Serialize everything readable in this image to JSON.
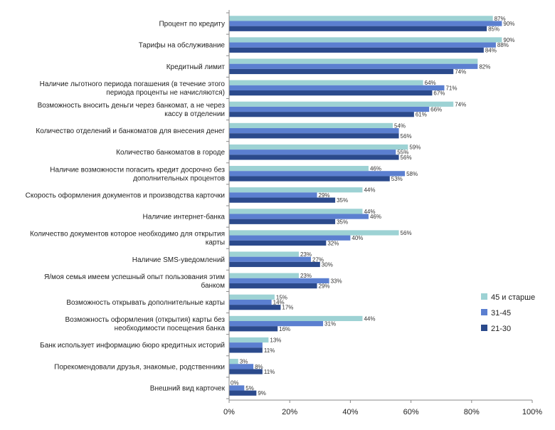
{
  "chart_data": {
    "type": "bar",
    "orientation": "horizontal",
    "categories": [
      [
        "Процент по кредиту"
      ],
      [
        "Тарифы на обслуживание"
      ],
      [
        "Кредитный лимит"
      ],
      [
        "Наличие льготного периода погашения (в течение этого",
        "периода проценты не начисляются)"
      ],
      [
        "Возможность вносить деньги через банкомат, а не через",
        "кассу в отделении"
      ],
      [
        "Количество отделений и банкоматов для внесения денег"
      ],
      [
        "Количество банкоматов в городе"
      ],
      [
        "Наличие возможности погасить кредит досрочно без",
        "дополнительных процентов"
      ],
      [
        "Скорость оформления документов и производства карточки"
      ],
      [
        "Наличие интернет-банка"
      ],
      [
        "Количество документов  которое необходимо для  открытия",
        "карты"
      ],
      [
        "Наличие SMS-уведомлений"
      ],
      [
        "Я/моя семья имеем успешный опыт пользования этим",
        "банком"
      ],
      [
        "Возможность открывать дополнительные карты"
      ],
      [
        "Возможность оформления  (открытия) карты без",
        "необходимости посещения  банка"
      ],
      [
        "Банк использует информацию бюро кредитных историй"
      ],
      [
        "Порекомендовали друзья, знакомые, родственники"
      ],
      [
        "Внешний вид карточек"
      ]
    ],
    "series": [
      {
        "name": "45 и старше",
        "color": "#9dd2d4",
        "values": [
          87,
          90,
          82,
          64,
          74,
          54,
          59,
          46,
          44,
          44,
          56,
          23,
          23,
          15,
          44,
          13,
          3,
          0
        ],
        "labels": [
          "87%",
          "90%",
          "",
          "64%",
          "74%",
          "54%",
          "59%",
          "46%",
          "44%",
          "44%",
          "56%",
          "23%",
          "23%",
          "15%",
          "44%",
          "13%",
          "3%",
          "0%"
        ]
      },
      {
        "name": "31-45",
        "color": "#5b7fd0",
        "values": [
          90,
          88,
          82,
          71,
          66,
          56,
          55,
          58,
          29,
          46,
          40,
          27,
          33,
          14,
          31,
          11,
          8,
          5
        ],
        "labels": [
          "90%",
          "88%",
          "82%",
          "71%",
          "66%",
          "",
          "55%",
          "58%",
          "29%",
          "46%",
          "40%",
          "27%",
          "33%",
          "14%",
          "31%",
          "",
          "8%",
          "5%"
        ]
      },
      {
        "name": "21-30",
        "color": "#2b4a8c",
        "values": [
          85,
          84,
          74,
          67,
          61,
          56,
          56,
          53,
          35,
          35,
          32,
          30,
          29,
          17,
          16,
          11,
          11,
          9
        ],
        "labels": [
          "85%",
          "84%",
          "74%",
          "67%",
          "61%",
          "56%",
          "56%",
          "53%",
          "35%",
          "35%",
          "32%",
          "30%",
          "29%",
          "17%",
          "16%",
          "11%",
          "11%",
          "9%"
        ]
      }
    ],
    "xticks": [
      "0%",
      "20%",
      "40%",
      "60%",
      "80%",
      "100%"
    ],
    "xlim": [
      0,
      100
    ],
    "grid": false,
    "legend_position": "right",
    "legend": [
      "45 и старше",
      "31-45",
      "21-30"
    ]
  }
}
